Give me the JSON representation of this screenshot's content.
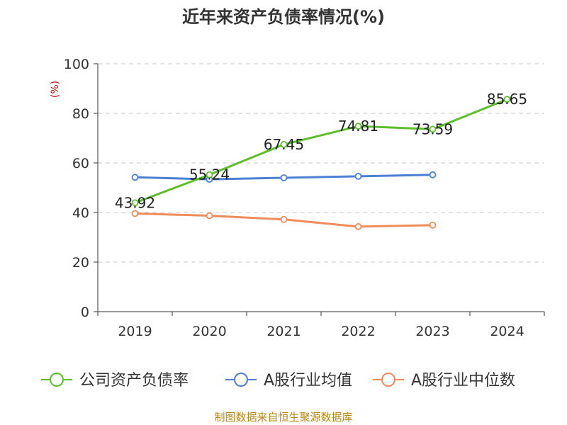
{
  "chart_data": {
    "type": "line",
    "title": "近年来资产负债率情况(%)",
    "ylabel": "(%)",
    "categories": [
      "2019",
      "2020",
      "2021",
      "2022",
      "2023",
      "2024"
    ],
    "ylim": [
      0,
      100
    ],
    "yticks": [
      "0",
      "20",
      "40",
      "60",
      "80",
      "100"
    ],
    "grid": true,
    "legend_position": "bottom",
    "series": [
      {
        "name": "公司资产负债率",
        "color": "#5cbf2a",
        "values": [
          43.92,
          55.24,
          67.45,
          74.81,
          73.59,
          85.65
        ],
        "labels": [
          "43.92",
          "55.24",
          "67.45",
          "74.81",
          "73.59",
          "85.65"
        ]
      },
      {
        "name": "A股行业均值",
        "color": "#4a7fd4",
        "values": [
          54.2,
          53.4,
          54.0,
          54.6,
          55.2,
          null
        ]
      },
      {
        "name": "A股行业中位数",
        "color": "#f08c5a",
        "values": [
          39.6,
          38.7,
          37.2,
          34.3,
          34.9,
          null
        ]
      }
    ]
  },
  "source": "制图数据来自恒生聚源数据库"
}
